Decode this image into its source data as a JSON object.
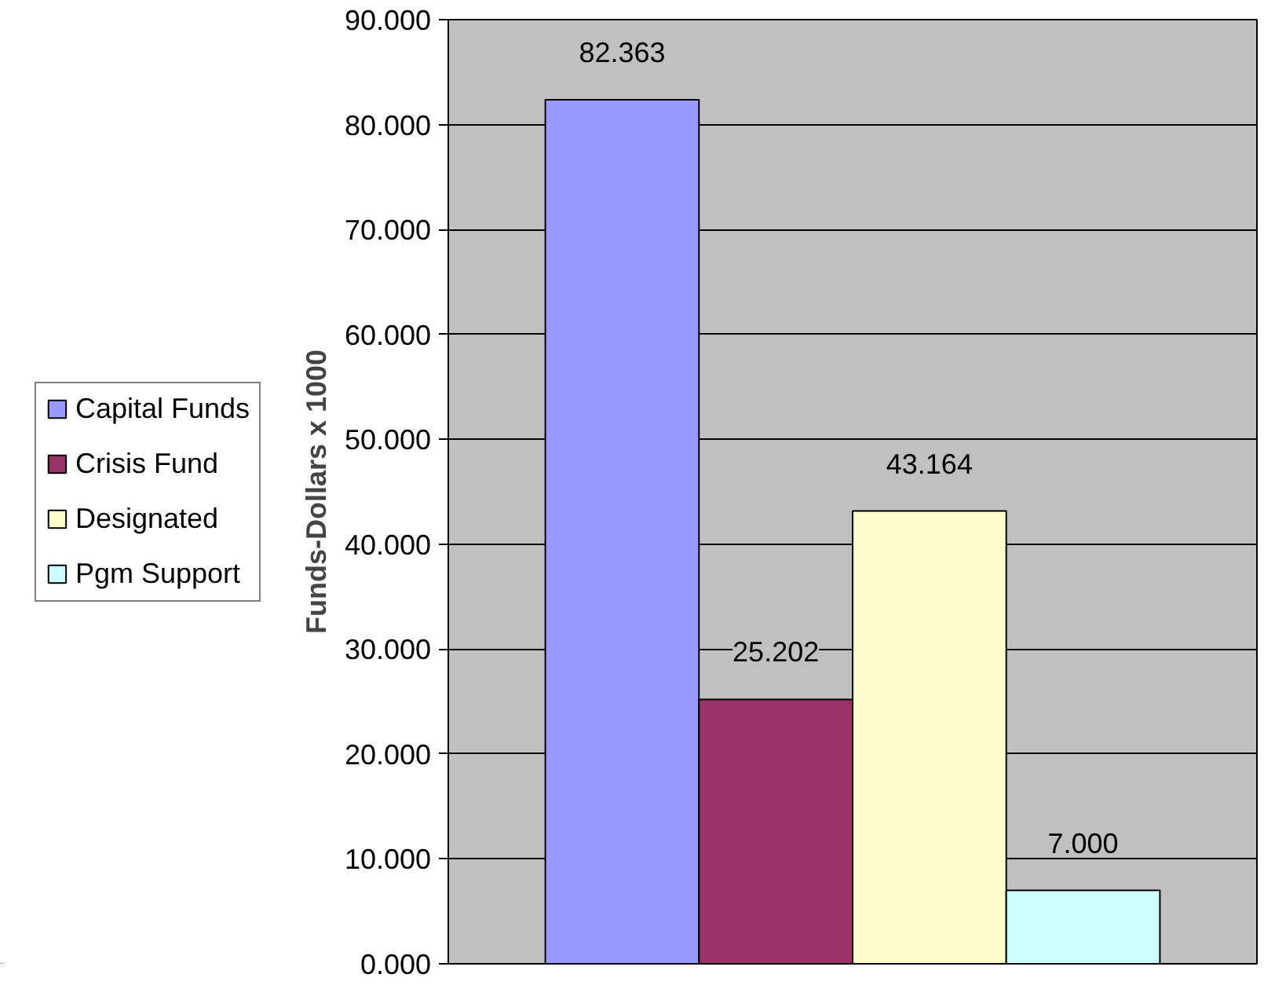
{
  "chart_data": {
    "type": "bar",
    "ylabel": "Funds-Dollars x 1000",
    "categories": [
      null
    ],
    "series": [
      {
        "name": "Capital Funds",
        "color": "#9999ff",
        "values": [
          82.363
        ],
        "value_labels": [
          "82.363"
        ]
      },
      {
        "name": "Crisis Fund",
        "color": "#993366",
        "values": [
          25.202
        ],
        "value_labels": [
          "25.202"
        ]
      },
      {
        "name": "Designated",
        "color": "#ffffcc",
        "values": [
          43.164
        ],
        "value_labels": [
          "43.164"
        ]
      },
      {
        "name": "Pgm Support",
        "color": "#ccffff",
        "values": [
          7.0
        ],
        "value_labels": [
          "7.000"
        ]
      }
    ],
    "ylim": [
      0,
      90
    ],
    "yticks": [
      {
        "value": 0,
        "label": "0.000"
      },
      {
        "value": 10,
        "label": "10.000"
      },
      {
        "value": 20,
        "label": "20.000"
      },
      {
        "value": 30,
        "label": "30.000"
      },
      {
        "value": 40,
        "label": "40.000"
      },
      {
        "value": 50,
        "label": "50.000"
      },
      {
        "value": 60,
        "label": "60.000"
      },
      {
        "value": 70,
        "label": "70.000"
      },
      {
        "value": 80,
        "label": "80.000"
      },
      {
        "value": 90,
        "label": "90.000"
      }
    ],
    "grid": "y",
    "legend": "left",
    "tick_labels": "y"
  }
}
